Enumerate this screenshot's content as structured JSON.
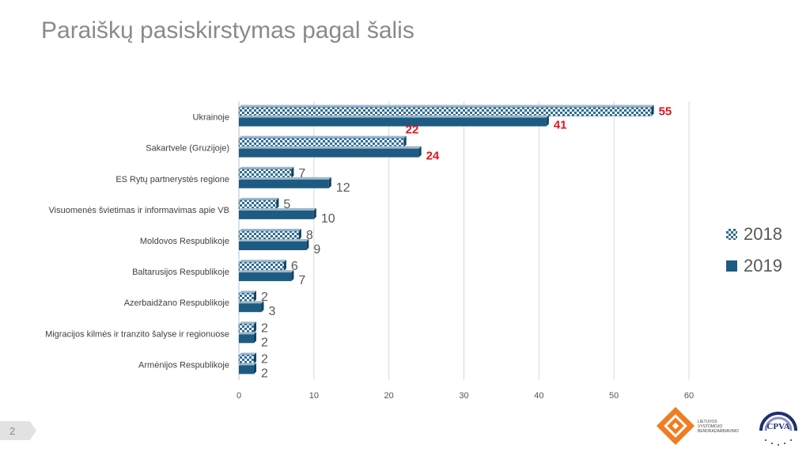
{
  "title": "Paraiškų pasiskirstymas pagal šalis",
  "page_number": "2",
  "colors": {
    "series_2018": "#2f6c93",
    "series_2019": "#1d5b82",
    "highlight": "#e0141e"
  },
  "logos": {
    "org_lines": [
      "LIETUVOS",
      "VYSTOMOJO",
      "BENDRADARBIAVIMO"
    ],
    "cpva_text": "CPVA"
  },
  "chart_data": {
    "type": "bar",
    "orientation": "horizontal",
    "categories": [
      "Ukrainoje",
      "Sakartvele (Gruzijoje)",
      "ES Rytų partnerystės regione",
      "Visuomenės švietimas ir informavimas apie VB",
      "Moldovos Respublikoje",
      "Baltarusijos Respublikoje",
      "Azerbaidžano Respublikoje",
      "Migracijos kilmės ir tranzito šalyse ir regionuose",
      "Armėnijos Respublikoje"
    ],
    "series": [
      {
        "name": "2018",
        "values": [
          55,
          22,
          7,
          5,
          8,
          6,
          2,
          2,
          2
        ],
        "pattern": "checker"
      },
      {
        "name": "2019",
        "values": [
          41,
          24,
          12,
          10,
          9,
          7,
          3,
          2,
          2
        ],
        "pattern": "solid"
      }
    ],
    "highlighted_categories": [
      0,
      1
    ],
    "xlim": [
      0,
      60
    ],
    "xticks": [
      "0",
      "10",
      "20",
      "30",
      "40",
      "50",
      "60"
    ],
    "grid": true,
    "legend": "right"
  }
}
